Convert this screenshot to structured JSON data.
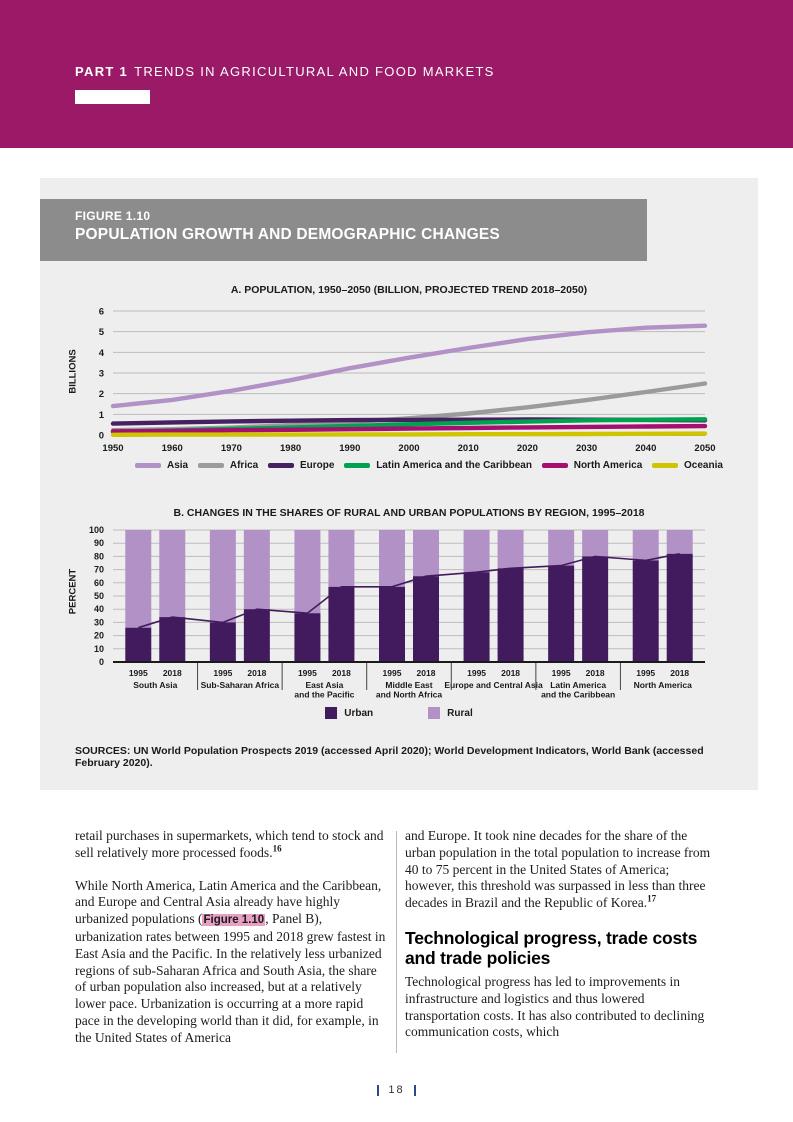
{
  "header": {
    "part_label": "PART 1",
    "part_title": "TRENDS IN AGRICULTURAL AND FOOD MARKETS"
  },
  "figure": {
    "label": "FIGURE 1.10",
    "title": "POPULATION GROWTH AND DEMOGRAPHIC CHANGES",
    "sources": "SOURCES: UN World Population Prospects 2019 (accessed April 2020); World Development Indicators, World Bank (accessed February 2020)."
  },
  "chart_data": [
    {
      "id": "panel-a",
      "type": "line",
      "title": "A. POPULATION, 1950–2050 (BILLION, PROJECTED TREND 2018–2050)",
      "xlabel": "",
      "ylabel": "BILLIONS",
      "x": [
        1950,
        1960,
        1970,
        1980,
        1990,
        2000,
        2010,
        2020,
        2030,
        2040,
        2050
      ],
      "ylim": [
        0,
        6
      ],
      "yticks": [
        0,
        1,
        2,
        3,
        4,
        5,
        6
      ],
      "grid": true,
      "legend_position": "bottom",
      "series": [
        {
          "name": "Asia",
          "color": "#b291c6",
          "values": [
            1.4,
            1.7,
            2.14,
            2.65,
            3.23,
            3.74,
            4.21,
            4.64,
            4.97,
            5.19,
            5.29
          ]
        },
        {
          "name": "Africa",
          "color": "#9c9b9b",
          "values": [
            0.23,
            0.28,
            0.36,
            0.48,
            0.63,
            0.81,
            1.04,
            1.34,
            1.69,
            2.08,
            2.49
          ]
        },
        {
          "name": "Europe",
          "color": "#46215f",
          "values": [
            0.55,
            0.61,
            0.66,
            0.69,
            0.72,
            0.73,
            0.74,
            0.75,
            0.74,
            0.73,
            0.71
          ]
        },
        {
          "name": "Latin America and the Caribbean",
          "color": "#00a14f",
          "values": [
            0.17,
            0.22,
            0.29,
            0.36,
            0.44,
            0.52,
            0.59,
            0.65,
            0.71,
            0.74,
            0.76
          ]
        },
        {
          "name": "North America",
          "color": "#a50f6d",
          "values": [
            0.17,
            0.2,
            0.23,
            0.25,
            0.28,
            0.31,
            0.34,
            0.37,
            0.39,
            0.41,
            0.43
          ]
        },
        {
          "name": "Oceania",
          "color": "#d0c400",
          "values": [
            0.01,
            0.02,
            0.02,
            0.02,
            0.03,
            0.03,
            0.04,
            0.04,
            0.05,
            0.06,
            0.07
          ]
        }
      ]
    },
    {
      "id": "panel-b",
      "type": "bar",
      "stacked": true,
      "title": "B. CHANGES IN THE SHARES OF RURAL AND URBAN POPULATIONS BY REGION, 1995–2018",
      "xlabel": "",
      "ylabel": "PERCENT",
      "ylim": [
        0,
        100
      ],
      "yticks": [
        0,
        10,
        20,
        30,
        40,
        50,
        60,
        70,
        80,
        90,
        100
      ],
      "grid": true,
      "legend_position": "bottom",
      "years": [
        "1995",
        "2018"
      ],
      "series_legend": [
        {
          "name": "Urban",
          "color": "#421a5e"
        },
        {
          "name": "Rural",
          "color": "#b291c6"
        }
      ],
      "groups": [
        {
          "region": [
            "South Asia"
          ],
          "urban": [
            26,
            34
          ],
          "rural": [
            74,
            66
          ]
        },
        {
          "region": [
            "Sub-Saharan Africa"
          ],
          "urban": [
            30,
            40
          ],
          "rural": [
            70,
            60
          ]
        },
        {
          "region": [
            "East Asia",
            "and the Pacific"
          ],
          "urban": [
            37,
            57
          ],
          "rural": [
            63,
            43
          ]
        },
        {
          "region": [
            "Middle East",
            "and North Africa"
          ],
          "urban": [
            57,
            65
          ],
          "rural": [
            43,
            35
          ]
        },
        {
          "region": [
            "Europe and Central Asia"
          ],
          "urban": [
            68,
            71
          ],
          "rural": [
            32,
            29
          ]
        },
        {
          "region": [
            "Latin America",
            "and the Caribbean"
          ],
          "urban": [
            73,
            80
          ],
          "rural": [
            27,
            20
          ]
        },
        {
          "region": [
            "North America"
          ],
          "urban": [
            77,
            82
          ],
          "rural": [
            23,
            18
          ]
        }
      ]
    }
  ],
  "body": {
    "left": {
      "para1_text": "retail purchases in supermarkets, which tend to stock and sell relatively more processed foods.",
      "para1_note": "16",
      "para2_before": "While North America, Latin America and the Caribbean, and Europe and Central Asia already have highly urbanized populations (",
      "para2_ref": "Figure 1.10",
      "para2_after": ", Panel B), urbanization rates between 1995 and 2018 grew fastest in East Asia and the Pacific. In the relatively less urbanized regions of sub-Saharan Africa and South Asia, the share of urban population also increased, but at a relatively lower pace. Urbanization is occurring at a more rapid pace in the developing world than it did, for example, in the United States of America"
    },
    "right": {
      "para1_text": "and Europe. It took nine decades for the share of the urban population in the total population to increase from 40 to 75 percent in the United States of America; however, this threshold was surpassed in less than three decades in Brazil and the Republic of Korea.",
      "para1_note": "17",
      "heading": "Technological progress, trade costs and trade policies",
      "para2": "Technological progress has led to improvements in infrastructure and logistics and thus lowered transportation costs. It has also contributed to declining communication costs, which"
    }
  },
  "footer": {
    "page_number": "18"
  },
  "colors": {
    "accent_magenta": "#9b1a67",
    "figure_bar_gray": "#8d8c8c",
    "panel_background": "#efeeee",
    "gridline": "#bdbcbc",
    "highlight_pink": "#e79fc3",
    "urban": "#421a5e",
    "rural": "#b291c6"
  }
}
